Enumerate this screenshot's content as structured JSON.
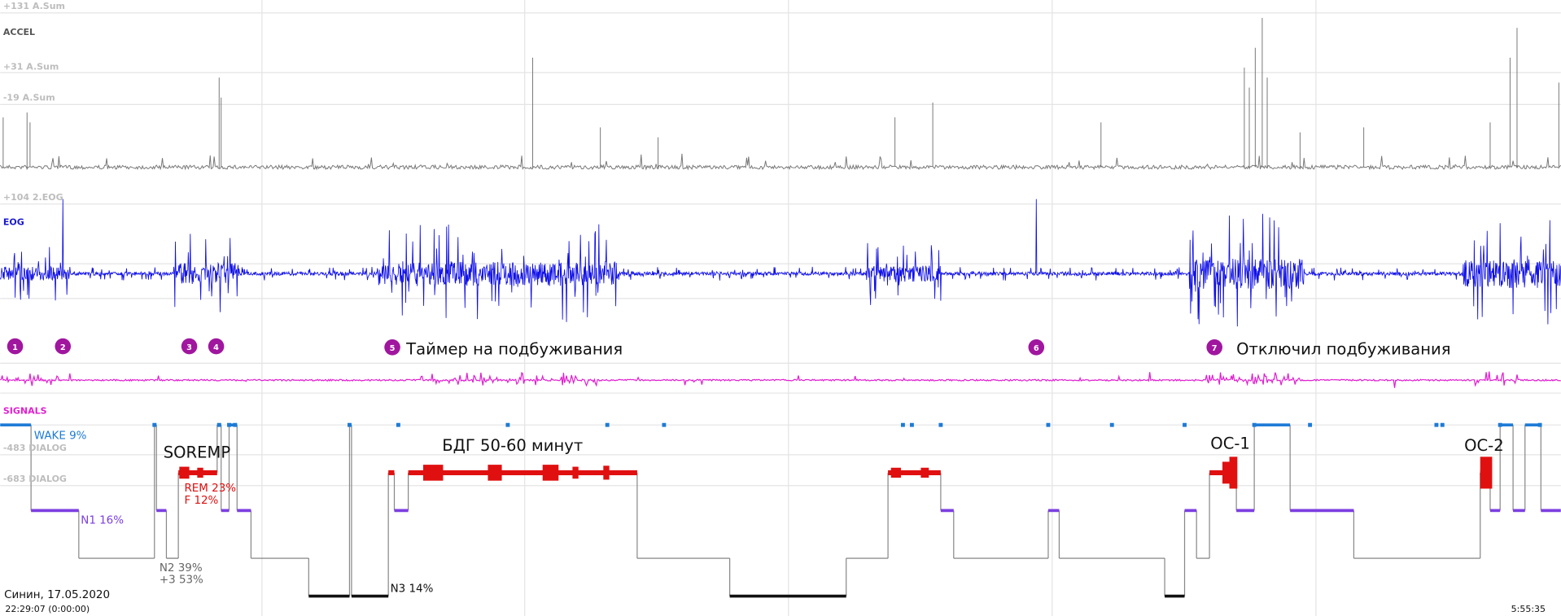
{
  "axis_labels": [
    "+131 A.Sum",
    "ACCEL",
    "+31 A.Sum",
    "-19 A.Sum",
    "+104 2.EOG",
    "EOG",
    "SIGNALS",
    "-483 DIALOG",
    "-683 DIALOG"
  ],
  "markers": [
    "1",
    "2",
    "3",
    "4",
    "5",
    "6",
    "7"
  ],
  "annotations": {
    "timer_on": "Таймер на подбуживания",
    "timer_off": "Отключил подбуживания",
    "soremp": "SOREMP",
    "rem_long": "БДГ 50-60 минут",
    "oc1": "ОС-1",
    "oc2": "ОС-2"
  },
  "hypnogram": {
    "wake": "WAKE 9%",
    "n1": "N1 16%",
    "n2": "N2 39%",
    "n2_plus": "+3 53%",
    "n3": "N3 14%",
    "rem": "REM 23%",
    "f": "F 12%"
  },
  "footer": {
    "subject": "Синин, 17.05.2020",
    "start": "22:29:07 (0:00:00)",
    "end": "5:55:35"
  }
}
